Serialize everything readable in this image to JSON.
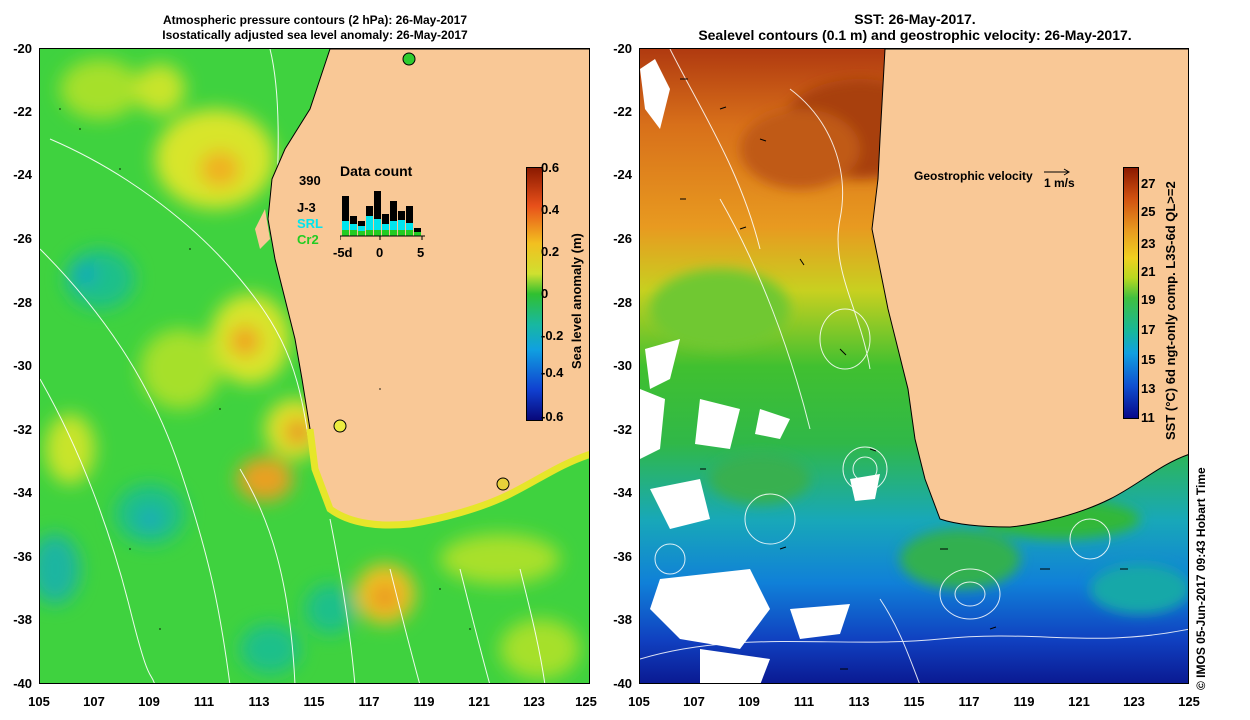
{
  "left_panel": {
    "title_line1": "Atmospheric pressure contours (2 hPa): 26-May-2017",
    "title_line2": "Isostatically adjusted sea level anomaly: 26-May-2017",
    "y_ticks": [
      "-20",
      "-22",
      "-24",
      "-26",
      "-28",
      "-30",
      "-32",
      "-34",
      "-36",
      "-38",
      "-40"
    ],
    "x_ticks": [
      "105",
      "107",
      "109",
      "111",
      "113",
      "115",
      "117",
      "119",
      "121",
      "123",
      "125"
    ],
    "colorbar": {
      "label": "Sea level anomaly (m)",
      "ticks": [
        "0.6",
        "0.4",
        "0.2",
        "0",
        "-0.2",
        "-0.4",
        "-0.6"
      ]
    },
    "inset": {
      "title": "Data count",
      "max_count": "390",
      "missions": [
        "J-3",
        "SRL",
        "Cr2"
      ],
      "x_ticks": [
        "-5d",
        "0",
        "5"
      ],
      "mission_colors": {
        "J-3": "#000000",
        "SRL": "#00e5ee",
        "Cr2": "#22cc22"
      }
    }
  },
  "right_panel": {
    "title_line1": "SST: 26-May-2017.",
    "title_line2": "Sealevel contours (0.1 m) and geostrophic velocity: 26-May-2017.",
    "y_ticks": [
      "-20",
      "-22",
      "-24",
      "-26",
      "-28",
      "-30",
      "-32",
      "-34",
      "-36",
      "-38",
      "-40"
    ],
    "x_ticks": [
      "105",
      "107",
      "109",
      "111",
      "113",
      "115",
      "117",
      "119",
      "121",
      "123",
      "125"
    ],
    "velocity_legend": "Geostrophic velocity",
    "velocity_scale": "1 m/s",
    "colorbar": {
      "label": "SST (°C) 6d ngt-only comp. L3S-6d QL>=2",
      "ticks": [
        "27",
        "25",
        "23",
        "21",
        "19",
        "17",
        "15",
        "13",
        "11"
      ]
    }
  },
  "credit": "© IMOS 05-Jun-2017 09:43 Hobart Time",
  "colors": {
    "land": "#f9c896",
    "ocean_green": "#3ccf3c",
    "white_contour": "#ffffff"
  }
}
